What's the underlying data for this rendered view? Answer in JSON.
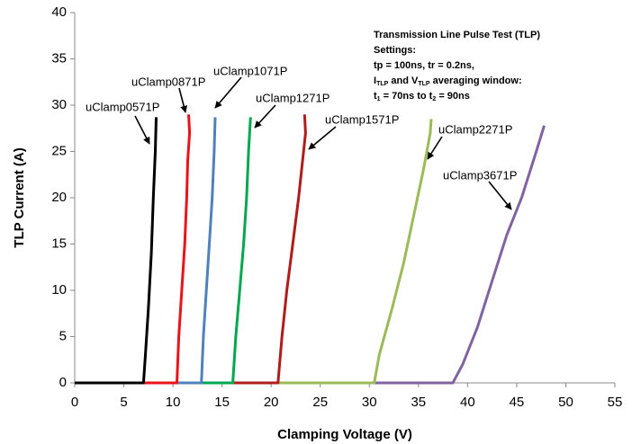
{
  "chart_data": {
    "type": "line",
    "xlabel": "Clamping Voltage (V)",
    "ylabel": "TLP Current (A)",
    "xlim": [
      0,
      55
    ],
    "xticks": [
      0,
      5,
      10,
      15,
      20,
      25,
      30,
      35,
      40,
      45,
      50,
      55
    ],
    "ylim": [
      0,
      40
    ],
    "yticks": [
      0,
      5,
      10,
      15,
      20,
      25,
      30,
      35,
      40
    ],
    "grid": false,
    "series": [
      {
        "name": "uClamp0571P",
        "color": "#000000",
        "x": [
          0,
          7.0,
          7.2,
          7.5,
          7.8,
          8.0,
          8.2,
          8.3
        ],
        "values": [
          0,
          0,
          3,
          8,
          14,
          20,
          25,
          28.7
        ]
      },
      {
        "name": "uClamp0871P",
        "color": "#e8141a",
        "x": [
          0,
          10.4,
          10.6,
          10.9,
          11.2,
          11.4,
          11.5,
          11.7,
          11.6
        ],
        "values": [
          0,
          0,
          5,
          10,
          15,
          20,
          24,
          27,
          29
        ]
      },
      {
        "name": "uClamp1071P",
        "color": "#4f81bd",
        "x": [
          0,
          12.9,
          13.1,
          13.4,
          13.7,
          14.0,
          14.2,
          14.3
        ],
        "values": [
          0,
          0,
          5,
          10,
          15,
          20,
          25,
          28.7
        ]
      },
      {
        "name": "uClamp1271P",
        "color": "#00a650",
        "x": [
          0,
          16.1,
          16.4,
          16.8,
          17.2,
          17.5,
          17.7,
          17.9
        ],
        "values": [
          0,
          0,
          5,
          10,
          15,
          20,
          25,
          28.7
        ]
      },
      {
        "name": "uClamp1571P",
        "color": "#b01c1c",
        "x": [
          0,
          20.7,
          21.1,
          21.6,
          22.2,
          22.8,
          23.2,
          23.5,
          23.4
        ],
        "values": [
          0,
          0,
          5,
          10,
          15,
          20,
          24,
          27,
          29
        ]
      },
      {
        "name": "uClamp2271P",
        "color": "#9bbb59",
        "x": [
          0,
          30.5,
          31.0,
          32.3,
          33.5,
          34.5,
          35.5,
          36.2,
          36.3
        ],
        "values": [
          0,
          0,
          3,
          8,
          13,
          18,
          23,
          27,
          28.5
        ]
      },
      {
        "name": "uClamp3671P",
        "color": "#8064a2",
        "x": [
          0,
          38.5,
          39.5,
          41.0,
          42.5,
          44.0,
          45.5,
          47.0,
          47.8
        ],
        "values": [
          0,
          0,
          2,
          6,
          11,
          16,
          20,
          25,
          27.8
        ]
      }
    ],
    "annotation": {
      "lines": [
        [
          {
            "t": "Transmission Line Pulse Test (TLP)"
          }
        ],
        [
          {
            "t": "Settings:"
          }
        ],
        [
          {
            "t": "tp = 100ns, tr = 0.2ns,"
          }
        ],
        [
          {
            "t": "I"
          },
          {
            "sub": "TLP"
          },
          {
            "t": " and V"
          },
          {
            "sub": "TLP"
          },
          {
            "t": " averaging window:"
          }
        ],
        [
          {
            "t": "t"
          },
          {
            "sub": "1"
          },
          {
            "t": " = 70ns to t"
          },
          {
            "sub": "2"
          },
          {
            "t": " = 90ns"
          }
        ]
      ]
    }
  }
}
